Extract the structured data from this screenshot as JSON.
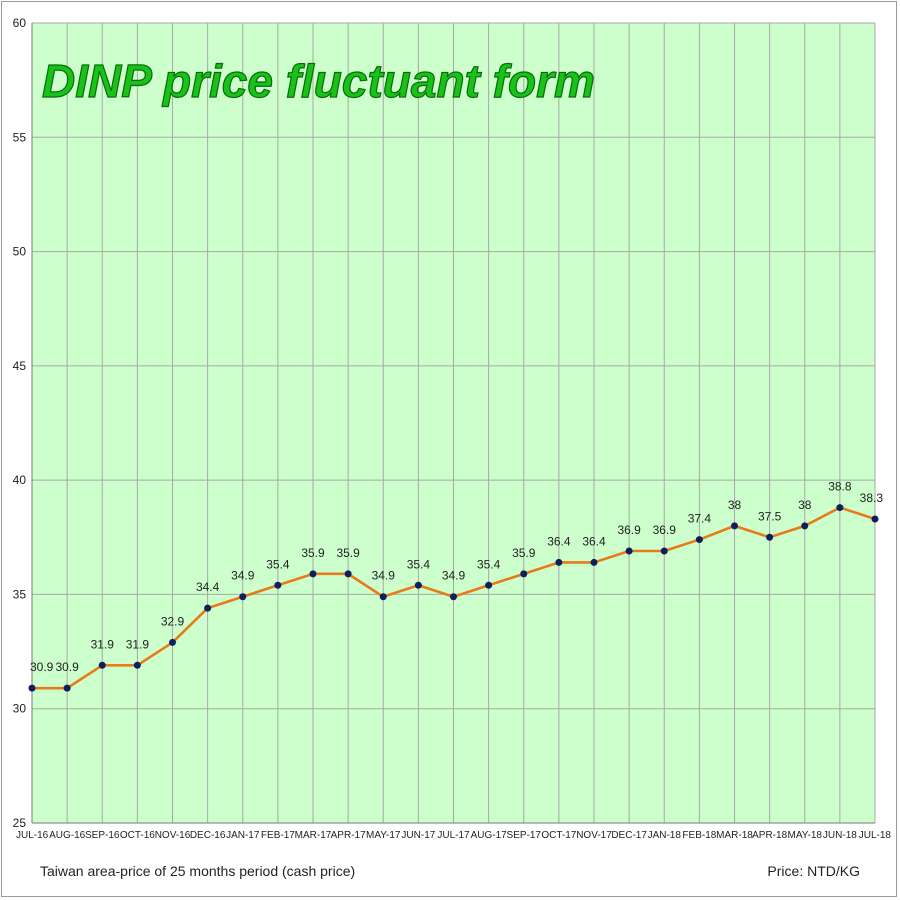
{
  "chart_data": {
    "type": "line",
    "title": "DINP price fluctuant form",
    "xlabel": "",
    "ylabel": "",
    "categories": [
      "JUL-16",
      "AUG-16",
      "SEP-16",
      "OCT-16",
      "NOV-16",
      "DEC-16",
      "JAN-17",
      "FEB-17",
      "MAR-17",
      "APR-17",
      "MAY-17",
      "JUN-17",
      "JUL-17",
      "AUG-17",
      "SEP-17",
      "OCT-17",
      "NOV-17",
      "DEC-17",
      "JAN-18",
      "FEB-18",
      "MAR-18",
      "APR-18",
      "MAY-18",
      "JUN-18",
      "JUL-18"
    ],
    "series": [
      {
        "values": [
          30.9,
          30.9,
          31.9,
          31.9,
          32.9,
          34.4,
          34.9,
          35.4,
          35.9,
          35.9,
          34.9,
          35.4,
          34.9,
          35.4,
          35.9,
          36.4,
          36.4,
          36.9,
          36.9,
          37.4,
          38,
          37.5,
          38,
          38.8,
          38.3
        ],
        "data_labels": [
          "30.9",
          "30.9",
          "31.9",
          "31.9",
          "32.9",
          "34.4",
          "34.9",
          "35.4",
          "35.9",
          "35.9",
          "34.9",
          "35.4",
          "34.9",
          "35.4",
          "35.9",
          "36.4",
          "36.4",
          "36.9",
          "36.9",
          "37.4",
          "38",
          "37.5",
          "38",
          "38.8",
          "38.3"
        ]
      }
    ],
    "ylim": [
      25,
      60
    ],
    "yticks": [
      25,
      30,
      35,
      40,
      45,
      50,
      55,
      60
    ],
    "grid": true,
    "legend": "none",
    "footnote_left": "Taiwan area-price of 25 months period (cash price)",
    "footnote_right": "Price: NTD/KG",
    "colors": {
      "plot_background": "#ccffcc",
      "gridline": "#a8a8a8",
      "line": "#e87a1a",
      "marker": "#0d1f5c",
      "title_fill": "#18c218",
      "title_outline": "#0a6a0a"
    }
  }
}
